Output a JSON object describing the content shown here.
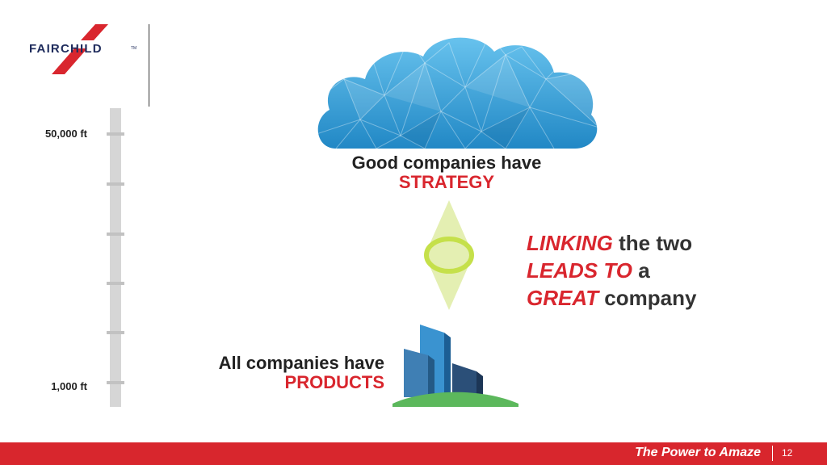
{
  "logo": {
    "brand": "FAIRCHILD",
    "tm": "TM"
  },
  "ruler": {
    "top_label": "50,000 ft",
    "bottom_label": "1,000 ft"
  },
  "strategy_block": {
    "line1": "Good companies have",
    "line2": "STRATEGY"
  },
  "products_block": {
    "line1": "All companies have",
    "line2": "PRODUCTS"
  },
  "linking": {
    "line1_emph": "LINKING",
    "line1_rest": " the two",
    "line2_emph": "LEADS TO",
    "line2_rest": " a",
    "line3_emph": "GREAT",
    "line3_rest": " company"
  },
  "footer": {
    "slogan": "The Power to Amaze",
    "page_number": "12"
  },
  "colors": {
    "accent_red": "#d9262e",
    "navy": "#1e2b5c",
    "cloud_blue": "#3aa3dc",
    "link_green": "#c5e04a",
    "ground_green": "#5cb85c"
  }
}
